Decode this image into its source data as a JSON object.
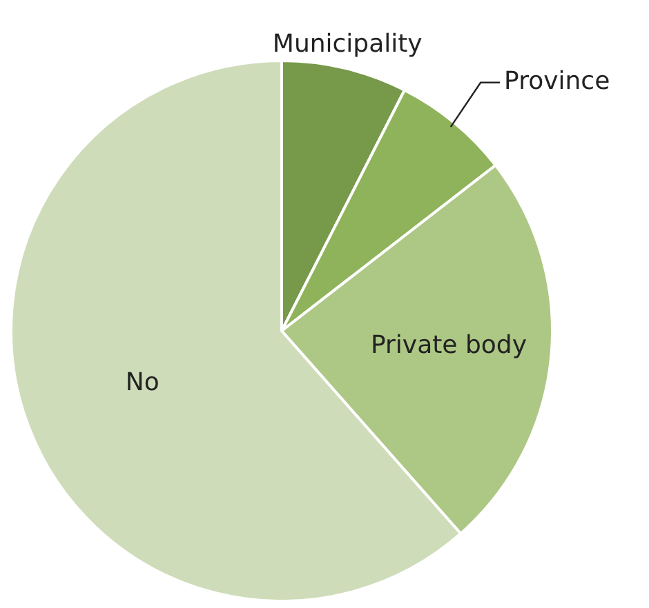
{
  "chart_data": {
    "type": "pie",
    "categories": [
      "Municipality",
      "Province",
      "Private body",
      "No"
    ],
    "values": [
      7.5,
      7,
      24,
      61.5
    ],
    "colors": [
      "#76994a",
      "#8fb35a",
      "#adc785",
      "#cfdcb9"
    ],
    "legend": false
  }
}
